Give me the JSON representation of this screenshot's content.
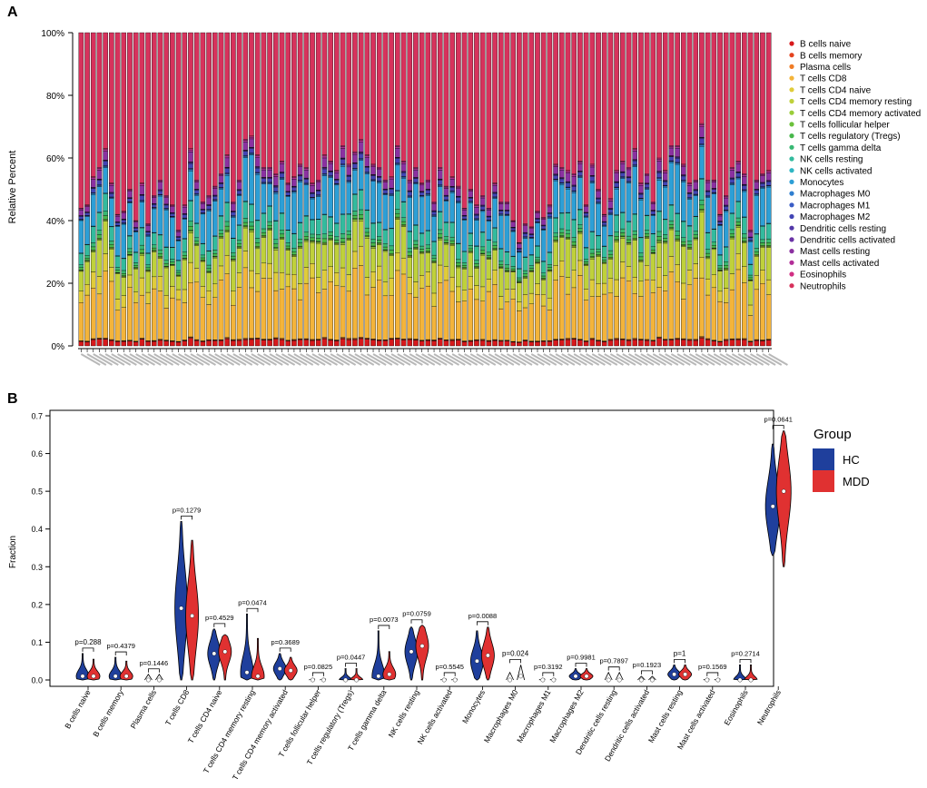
{
  "panels": {
    "a": "A",
    "b": "B"
  },
  "chart_data": [
    {
      "type": "bar",
      "stacked": true,
      "ylabel": "Relative Percent",
      "ylim": [
        0,
        100
      ],
      "yticks": [
        "0%",
        "20%",
        "40%",
        "60%",
        "80%",
        "100%"
      ],
      "sample_count": 114,
      "sample_labels_note": "x tick labels (sample IDs) are too small to read",
      "legend": [
        {
          "name": "B cells naive",
          "color": "#d7191c"
        },
        {
          "name": "B cells memory",
          "color": "#e4431f"
        },
        {
          "name": "Plasma cells",
          "color": "#f07c26"
        },
        {
          "name": "T cells CD8",
          "color": "#f4b43a"
        },
        {
          "name": "T cells CD4 naive",
          "color": "#e0cc3a"
        },
        {
          "name": "T cells CD4 memory resting",
          "color": "#bfd13b"
        },
        {
          "name": "T cells CD4 memory activated",
          "color": "#9acd3a"
        },
        {
          "name": "T cells follicular helper",
          "color": "#6cc13c"
        },
        {
          "name": "T cells regulatory (Tregs)",
          "color": "#48b84b"
        },
        {
          "name": "T cells gamma delta",
          "color": "#38b873"
        },
        {
          "name": "NK cells resting",
          "color": "#33bb9e"
        },
        {
          "name": "NK cells activated",
          "color": "#2fb6c3"
        },
        {
          "name": "Monocytes",
          "color": "#2d9fd6"
        },
        {
          "name": "Macrophages M0",
          "color": "#2f7fd0"
        },
        {
          "name": "Macrophages M1",
          "color": "#3a5ec6"
        },
        {
          "name": "Macrophages M2",
          "color": "#4245b5"
        },
        {
          "name": "Dendritic cells resting",
          "color": "#5338a8"
        },
        {
          "name": "Dendritic cells activated",
          "color": "#6a33a6"
        },
        {
          "name": "Mast cells resting",
          "color": "#8b31a1"
        },
        {
          "name": "Mast cells activated",
          "color": "#b22e98"
        },
        {
          "name": "Eosinophils",
          "color": "#d12f83"
        },
        {
          "name": "Neutrophils",
          "color": "#d7325c"
        }
      ],
      "non_neutrophil_totals_percent": [
        44,
        45,
        54,
        57,
        63,
        52,
        42,
        43,
        50,
        40,
        52,
        39,
        48,
        53,
        48,
        45,
        37,
        45,
        63,
        53,
        46,
        48,
        51,
        55,
        61,
        46,
        53,
        66,
        67,
        61,
        57,
        57,
        55,
        59,
        52,
        54,
        58,
        57,
        52,
        53,
        61,
        59,
        56,
        64,
        58,
        62,
        66,
        61,
        58,
        57,
        53,
        54,
        64,
        59,
        53,
        57,
        52,
        53,
        46,
        57,
        51,
        54,
        51,
        44,
        50,
        45,
        48,
        44,
        52,
        46,
        46,
        40,
        33,
        39,
        38,
        43,
        41,
        45,
        58,
        57,
        56,
        55,
        59,
        45,
        58,
        50,
        42,
        47,
        56,
        59,
        57,
        63,
        52,
        55,
        46,
        60,
        56,
        64,
        64,
        58,
        52,
        53,
        71,
        53,
        53,
        42,
        48,
        57,
        59,
        55,
        37,
        53,
        55,
        56
      ]
    },
    {
      "type": "violin",
      "ylabel": "Fraction",
      "ylim": [
        0,
        0.7
      ],
      "yticks": [
        "0.0",
        "0.1",
        "0.2",
        "0.3",
        "0.4",
        "0.5",
        "0.6",
        "0.7"
      ],
      "legend_title": "Group",
      "groups": [
        {
          "name": "HC",
          "color": "#1f3f9c"
        },
        {
          "name": "MDD",
          "color": "#e03131"
        }
      ],
      "categories": [
        {
          "name": "B cells naive",
          "p": "p=0.288",
          "hc": 0.01,
          "mdd": 0.01,
          "hc_max": 0.07,
          "mdd_max": 0.055
        },
        {
          "name": "B cells memory",
          "p": "p=0.4379",
          "hc": 0.01,
          "mdd": 0.01,
          "hc_max": 0.06,
          "mdd_max": 0.05
        },
        {
          "name": "Plasma cells",
          "p": "p=0.1446",
          "hc": 0.0,
          "mdd": 0.0,
          "hc_max": 0.015,
          "mdd_max": 0.015
        },
        {
          "name": "T cells CD8",
          "p": "p=0.1279",
          "hc": 0.19,
          "mdd": 0.17,
          "hc_max": 0.42,
          "mdd_max": 0.37
        },
        {
          "name": "T cells CD4 naive",
          "p": "p=0.4529",
          "hc": 0.07,
          "mdd": 0.075,
          "hc_max": 0.135,
          "mdd_max": 0.12
        },
        {
          "name": "T cells CD4 memory resting",
          "p": "p=0.0474",
          "hc": 0.02,
          "mdd": 0.01,
          "hc_max": 0.175,
          "mdd_max": 0.11
        },
        {
          "name": "T cells CD4 memory activated",
          "p": "p=0.3689",
          "hc": 0.03,
          "mdd": 0.025,
          "hc_max": 0.07,
          "mdd_max": 0.06
        },
        {
          "name": "T cells follicular helper",
          "p": "p=0.0825",
          "hc": 0.0,
          "mdd": 0.0,
          "hc_max": 0.005,
          "mdd_max": 0.005
        },
        {
          "name": "T cells regulatory (Tregs)",
          "p": "p=0.0447",
          "hc": 0.0,
          "mdd": 0.0,
          "hc_max": 0.03,
          "mdd_max": 0.03
        },
        {
          "name": "T cells gamma delta",
          "p": "p=0.0073",
          "hc": 0.01,
          "mdd": 0.015,
          "hc_max": 0.13,
          "mdd_max": 0.075
        },
        {
          "name": "NK cells resting",
          "p": "p=0.0759",
          "hc": 0.075,
          "mdd": 0.09,
          "hc_max": 0.14,
          "mdd_max": 0.145
        },
        {
          "name": "NK cells activated",
          "p": "p=0.5545",
          "hc": 0.0,
          "mdd": 0.0,
          "hc_max": 0.005,
          "mdd_max": 0.005
        },
        {
          "name": "Monocytes",
          "p": "p=0.0088",
          "hc": 0.05,
          "mdd": 0.065,
          "hc_max": 0.13,
          "mdd_max": 0.14
        },
        {
          "name": "Macrophages M0",
          "p": "p=0.024",
          "hc": 0.0,
          "mdd": 0.01,
          "hc_max": 0.02,
          "mdd_max": 0.04
        },
        {
          "name": "Macrophages M1",
          "p": "p=0.3192",
          "hc": 0.0,
          "mdd": 0.0,
          "hc_max": 0.005,
          "mdd_max": 0.005
        },
        {
          "name": "Macrophages M2",
          "p": "p=0.9981",
          "hc": 0.01,
          "mdd": 0.01,
          "hc_max": 0.03,
          "mdd_max": 0.03
        },
        {
          "name": "Dendritic cells resting",
          "p": "p=0.7897",
          "hc": 0.0,
          "mdd": 0.0,
          "hc_max": 0.02,
          "mdd_max": 0.02
        },
        {
          "name": "Dendritic cells activated",
          "p": "p=0.1923",
          "hc": 0.0,
          "mdd": 0.0,
          "hc_max": 0.01,
          "mdd_max": 0.01
        },
        {
          "name": "Mast cells resting",
          "p": "p=1",
          "hc": 0.015,
          "mdd": 0.015,
          "hc_max": 0.04,
          "mdd_max": 0.04
        },
        {
          "name": "Mast cells activated",
          "p": "p=0.1569",
          "hc": 0.0,
          "mdd": 0.0,
          "hc_max": 0.005,
          "mdd_max": 0.005
        },
        {
          "name": "Eosinophils",
          "p": "p=0.2714",
          "hc": 0.0,
          "mdd": 0.0,
          "hc_max": 0.04,
          "mdd_max": 0.04
        },
        {
          "name": "Neutrophils",
          "p": "p=0.0641",
          "hc": 0.46,
          "mdd": 0.5,
          "hc_max": 0.625,
          "mdd_max": 0.66,
          "hc_min": 0.33,
          "mdd_min": 0.3
        }
      ]
    }
  ]
}
